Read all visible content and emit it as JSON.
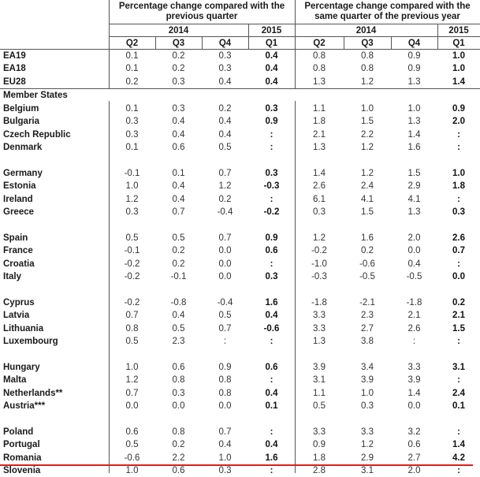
{
  "header": {
    "group1_title": "Percentage change compared with the previous quarter",
    "group1_line1": "Percentage change compared with the",
    "group1_line2": "previous quarter",
    "group2_line1": "Percentage change compared with the",
    "group2_line2": "same quarter of the previous year",
    "year_2014": "2014",
    "year_2015": "2015",
    "quarters": [
      "Q2",
      "Q3",
      "Q4",
      "Q1"
    ]
  },
  "section_label": "Member States",
  "aggregates": [
    {
      "name": "EA19",
      "qoq": [
        "0.1",
        "0.2",
        "0.3",
        "0.4"
      ],
      "yoy": [
        "0.8",
        "0.8",
        "0.9",
        "1.0"
      ]
    },
    {
      "name": "EA18",
      "qoq": [
        "0.1",
        "0.2",
        "0.3",
        "0.4"
      ],
      "yoy": [
        "0.8",
        "0.8",
        "0.9",
        "1.0"
      ]
    },
    {
      "name": "EU28",
      "qoq": [
        "0.2",
        "0.3",
        "0.4",
        "0.4"
      ],
      "yoy": [
        "1.3",
        "1.2",
        "1.3",
        "1.4"
      ]
    }
  ],
  "members": [
    {
      "name": "Belgium",
      "qoq": [
        "0.1",
        "0.3",
        "0.2",
        "0.3"
      ],
      "yoy": [
        "1.1",
        "1.0",
        "1.0",
        "0.9"
      ]
    },
    {
      "name": "Bulgaria",
      "qoq": [
        "0.3",
        "0.4",
        "0.4",
        "0.9"
      ],
      "yoy": [
        "1.8",
        "1.5",
        "1.3",
        "2.0"
      ]
    },
    {
      "name": "Czech Republic",
      "qoq": [
        "0.3",
        "0.4",
        "0.4",
        ":"
      ],
      "yoy": [
        "2.1",
        "2.2",
        "1.4",
        ":"
      ]
    },
    {
      "name": "Denmark",
      "qoq": [
        "0.1",
        "0.6",
        "0.5",
        ":"
      ],
      "yoy": [
        "1.3",
        "1.2",
        "1.6",
        ":"
      ]
    },
    {
      "name": "Germany",
      "qoq": [
        "-0.1",
        "0.1",
        "0.7",
        "0.3"
      ],
      "yoy": [
        "1.4",
        "1.2",
        "1.5",
        "1.0"
      ]
    },
    {
      "name": "Estonia",
      "qoq": [
        "1.0",
        "0.4",
        "1.2",
        "-0.3"
      ],
      "yoy": [
        "2.6",
        "2.4",
        "2.9",
        "1.8"
      ]
    },
    {
      "name": "Ireland",
      "qoq": [
        "1.2",
        "0.4",
        "0.2",
        ":"
      ],
      "yoy": [
        "6.1",
        "4.1",
        "4.1",
        ":"
      ]
    },
    {
      "name": "Greece",
      "qoq": [
        "0.3",
        "0.7",
        "-0.4",
        "-0.2"
      ],
      "yoy": [
        "0.3",
        "1.5",
        "1.3",
        "0.3"
      ]
    },
    {
      "name": "Spain",
      "qoq": [
        "0.5",
        "0.5",
        "0.7",
        "0.9"
      ],
      "yoy": [
        "1.2",
        "1.6",
        "2.0",
        "2.6"
      ]
    },
    {
      "name": "France",
      "qoq": [
        "-0.1",
        "0.2",
        "0.0",
        "0.6"
      ],
      "yoy": [
        "-0.2",
        "0.2",
        "0.0",
        "0.7"
      ]
    },
    {
      "name": "Croatia",
      "qoq": [
        "-0.2",
        "0.2",
        "0.0",
        ":"
      ],
      "yoy": [
        "-1.0",
        "-0.6",
        "0.4",
        ":"
      ]
    },
    {
      "name": "Italy",
      "qoq": [
        "-0.2",
        "-0.1",
        "0.0",
        "0.3"
      ],
      "yoy": [
        "-0.3",
        "-0.5",
        "-0.5",
        "0.0"
      ]
    },
    {
      "name": "Cyprus",
      "qoq": [
        "-0.2",
        "-0.8",
        "-0.4",
        "1.6"
      ],
      "yoy": [
        "-1.8",
        "-2.1",
        "-1.8",
        "0.2"
      ]
    },
    {
      "name": "Latvia",
      "qoq": [
        "0.7",
        "0.4",
        "0.5",
        "0.4"
      ],
      "yoy": [
        "3.3",
        "2.3",
        "2.1",
        "2.1"
      ]
    },
    {
      "name": "Lithuania",
      "qoq": [
        "0.8",
        "0.5",
        "0.7",
        "-0.6"
      ],
      "yoy": [
        "3.3",
        "2.7",
        "2.6",
        "1.5"
      ]
    },
    {
      "name": "Luxembourg",
      "qoq": [
        "0.5",
        "2.3",
        ":",
        ":"
      ],
      "yoy": [
        "1.3",
        "3.8",
        ":",
        ":"
      ]
    },
    {
      "name": "Hungary",
      "qoq": [
        "1.0",
        "0.6",
        "0.9",
        "0.6"
      ],
      "yoy": [
        "3.9",
        "3.4",
        "3.3",
        "3.1"
      ]
    },
    {
      "name": "Malta",
      "qoq": [
        "1.2",
        "0.8",
        "0.8",
        ":"
      ],
      "yoy": [
        "3.1",
        "3.9",
        "3.9",
        ":"
      ]
    },
    {
      "name": "Netherlands**",
      "qoq": [
        "0.7",
        "0.3",
        "0.8",
        "0.4"
      ],
      "yoy": [
        "1.1",
        "1.0",
        "1.4",
        "2.4"
      ]
    },
    {
      "name": "Austria***",
      "qoq": [
        "0.0",
        "0.0",
        "0.0",
        "0.1"
      ],
      "yoy": [
        "0.5",
        "0.3",
        "0.0",
        "0.1"
      ]
    },
    {
      "name": "Poland",
      "qoq": [
        "0.6",
        "0.8",
        "0.7",
        ":"
      ],
      "yoy": [
        "3.3",
        "3.3",
        "3.2",
        ":"
      ]
    },
    {
      "name": "Portugal",
      "qoq": [
        "0.5",
        "0.2",
        "0.4",
        "0.4"
      ],
      "yoy": [
        "0.9",
        "1.2",
        "0.6",
        "1.4"
      ]
    },
    {
      "name": "Romania",
      "qoq": [
        "-0.6",
        "2.2",
        "1.0",
        "1.6"
      ],
      "yoy": [
        "1.8",
        "2.9",
        "2.7",
        "4.2"
      ]
    },
    {
      "name": "Slovenia",
      "qoq": [
        "1.0",
        "0.6",
        "0.3",
        ":"
      ],
      "yoy": [
        "2.8",
        "3.1",
        "2.0",
        ":"
      ]
    }
  ],
  "highlight": {
    "color": "#d42020",
    "below_row": "Romania"
  }
}
